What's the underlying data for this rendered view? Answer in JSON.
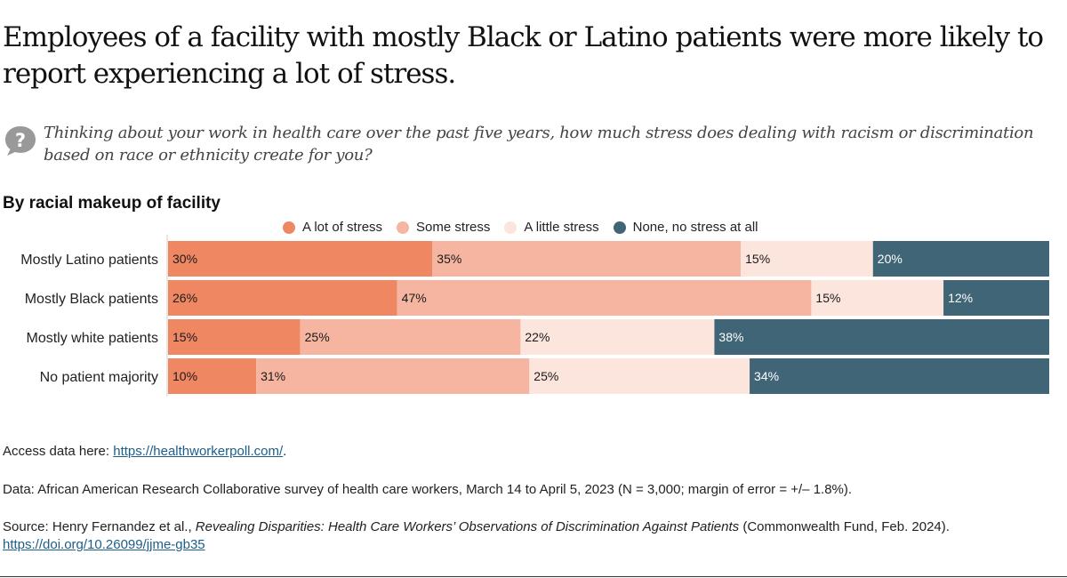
{
  "title": "Employees of a facility with mostly Black or Latino patients were more likely to report experiencing a lot of stress.",
  "question": "Thinking about your work in health care over the past five years, how much stress does dealing with racism or discrimination based on race or ethnicity create for you?",
  "question_icon": "question-bubble-icon",
  "chart_data": {
    "type": "bar",
    "orientation": "horizontal-stacked-100",
    "title": "By racial makeup of facility",
    "categories": [
      "Mostly Latino patients",
      "Mostly Black patients",
      "Mostly white patients",
      "No patient majority"
    ],
    "series": [
      {
        "name": "A lot of stress",
        "color": "#F08763",
        "label_color": "#1a1a1a",
        "values": [
          30,
          26,
          15,
          10
        ]
      },
      {
        "name": "Some stress",
        "color": "#F6B5A0",
        "label_color": "#1a1a1a",
        "values": [
          35,
          47,
          25,
          31
        ]
      },
      {
        "name": "A little stress",
        "color": "#FBE5DD",
        "label_color": "#1a1a1a",
        "values": [
          15,
          15,
          22,
          25
        ]
      },
      {
        "name": "None, no stress at all",
        "color": "#406577",
        "label_color": "#ffffff",
        "values": [
          20,
          12,
          38,
          34
        ]
      }
    ],
    "xlim": [
      0,
      100
    ],
    "value_suffix": "%",
    "legend": "top",
    "grid": false
  },
  "notes": {
    "access_prefix": "Access data here: ",
    "access_link": "https://healthworkerpoll.com/",
    "access_suffix": ".",
    "data": "Data: African American Research Collaborative survey of health care workers, March 14 to April 5, 2023 (N = 3,000; margin of error = +/– 1.8%).",
    "source_prefix": "Source: Henry Fernandez et al., ",
    "source_title": "Revealing Disparities: Health Care Workers’ Observations of Discrimination Against Patients",
    "source_suffix": " (Commonwealth Fund, Feb. 2024).",
    "source_link": "https://doi.org/10.26099/jjme-gb35"
  }
}
